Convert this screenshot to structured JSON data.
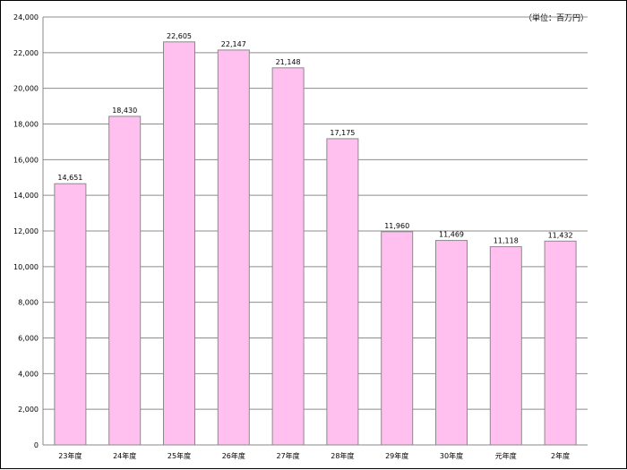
{
  "chart_data": {
    "type": "bar",
    "unit": "（単位：百万円）",
    "categories": [
      "23年度",
      "24年度",
      "25年度",
      "26年度",
      "27年度",
      "28年度",
      "29年度",
      "30年度",
      "元年度",
      "2年度"
    ],
    "values": [
      14651,
      18430,
      22605,
      22147,
      21148,
      17175,
      11960,
      11469,
      11118,
      11432
    ],
    "data_labels": [
      "14,651",
      "18,430",
      "22,605",
      "22,147",
      "21,148",
      "17,175",
      "11,960",
      "11,469",
      "11,118",
      "11,432"
    ],
    "ylim": [
      0,
      24000
    ],
    "yticks": [
      0,
      2000,
      4000,
      6000,
      8000,
      10000,
      12000,
      14000,
      16000,
      18000,
      20000,
      22000,
      24000
    ],
    "ytick_labels": [
      "0",
      "2,000",
      "4,000",
      "6,000",
      "8,000",
      "10,000",
      "12,000",
      "14,000",
      "16,000",
      "18,000",
      "20,000",
      "22,000",
      "24,000"
    ],
    "grid": true,
    "bar_fill": "#ffc0f0",
    "bar_stroke": "#8a8a8a",
    "grid_color": "#8c8c8c"
  }
}
